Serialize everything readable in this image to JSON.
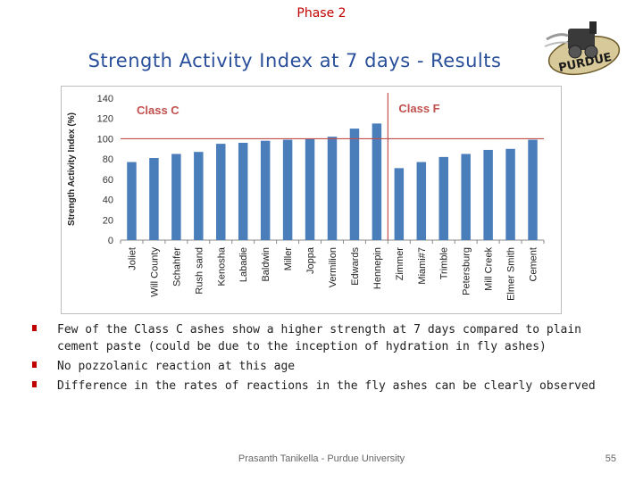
{
  "header": {
    "phase": "Phase 2",
    "title": "Strength Activity Index at 7 days - Results"
  },
  "logo": {
    "text": "PURDUE",
    "icon": "locomotive-logo-icon"
  },
  "chart_data": {
    "type": "bar",
    "title": "",
    "xlabel": "",
    "ylabel": "Strength Activity Index (%)",
    "ylim": [
      0,
      140
    ],
    "yticks": [
      0,
      20,
      40,
      60,
      80,
      100,
      120,
      140
    ],
    "grid": false,
    "categories": [
      "Joliet",
      "Will County",
      "Schahfer",
      "Rush sand",
      "Kenosha",
      "Labadie",
      "Baldwin",
      "Miller",
      "Joppa",
      "Vermilion",
      "Edwards",
      "Hennepin",
      "Zimmer",
      "Miami#7",
      "Trimble",
      "Petersburg",
      "Mill Creek",
      "Elmer Smith",
      "Cement"
    ],
    "values": [
      77,
      81,
      85,
      87,
      95,
      96,
      98,
      99,
      100,
      102,
      110,
      115,
      71,
      77,
      82,
      85,
      89,
      90,
      99
    ],
    "reference_line": 100,
    "groups": [
      {
        "label": "Class C"
      },
      {
        "label": "Class F"
      }
    ],
    "bar_color": "#4a7ebb",
    "label_color": "#c0504d",
    "ref_line_color": "#c0504d"
  },
  "bullets": [
    "Few of the Class C ashes show a higher strength at 7 days compared to plain cement paste (could be due to the inception of hydration in fly ashes)",
    "No pozzolanic reaction at this age",
    "Difference in the rates of reactions in the fly ashes can be clearly observed"
  ],
  "footer": {
    "author": "Prasanth Tanikella - Purdue University",
    "page": "55"
  }
}
